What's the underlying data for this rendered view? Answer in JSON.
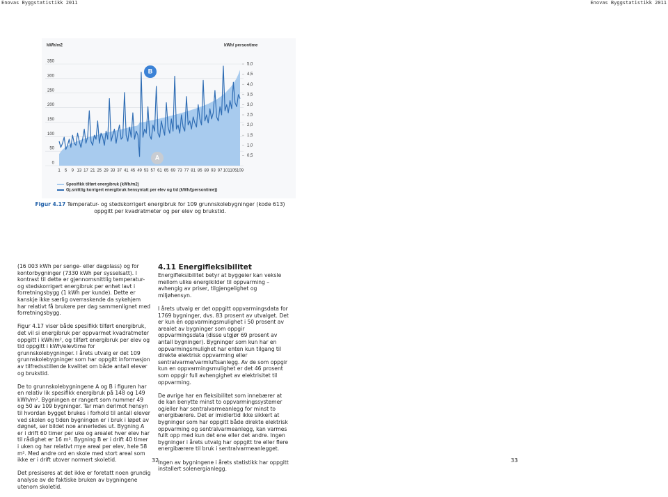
{
  "header": {
    "left": "Enovas Byggstatistikk 2011",
    "right": "Enovas Byggstatistikk 2011"
  },
  "chart_data": {
    "type": "area-line",
    "y_label": "kWh/m2",
    "y2_label": "kWh/ persontime",
    "x": [
      1,
      2,
      3,
      4,
      5,
      6,
      7,
      8,
      9,
      10,
      11,
      12,
      13,
      14,
      15,
      16,
      17,
      18,
      19,
      20,
      21,
      22,
      23,
      24,
      25,
      26,
      27,
      28,
      29,
      30,
      31,
      32,
      33,
      34,
      35,
      36,
      37,
      38,
      39,
      40,
      41,
      42,
      43,
      44,
      45,
      46,
      47,
      48,
      49,
      50,
      51,
      52,
      53,
      54,
      55,
      56,
      57,
      58,
      59,
      60,
      61,
      62,
      63,
      64,
      65,
      66,
      67,
      68,
      69,
      70,
      71,
      72,
      73,
      74,
      75,
      76,
      77,
      78,
      79,
      80,
      81,
      82,
      83,
      84,
      85,
      86,
      87,
      88,
      89,
      90,
      91,
      92,
      93,
      94,
      95,
      96,
      97,
      98,
      99,
      100,
      101,
      102,
      103,
      104,
      105,
      106,
      107,
      108,
      109
    ],
    "xlim": [
      1,
      109
    ],
    "xticks": [
      1,
      5,
      9,
      13,
      17,
      21,
      25,
      29,
      33,
      37,
      41,
      45,
      49,
      53,
      57,
      61,
      65,
      69,
      73,
      77,
      81,
      85,
      89,
      93,
      97,
      101,
      105,
      109
    ],
    "ylim": [
      0,
      350
    ],
    "yticks": [
      0,
      50,
      100,
      150,
      200,
      250,
      300,
      350
    ],
    "y2lim": [
      0,
      5
    ],
    "y2ticks": [
      {
        "value": 0.5,
        "label": "0,5"
      },
      {
        "value": 1,
        "label": "1,0"
      },
      {
        "value": 1.5,
        "label": "1,5"
      },
      {
        "value": 2,
        "label": "2,0"
      },
      {
        "value": 2.5,
        "label": "2,5"
      },
      {
        "value": 3,
        "label": "3,0"
      },
      {
        "value": 3.5,
        "label": "3,5"
      },
      {
        "value": 4,
        "label": "4,0"
      },
      {
        "value": 4.5,
        "label": "4,5"
      },
      {
        "value": 5,
        "label": "5,0"
      }
    ],
    "grid": true,
    "series": [
      {
        "name": "Spesifikk tilført energibruk (kWh/m2)",
        "color": "#a8cbee",
        "values": [
          40,
          48,
          55,
          60,
          65,
          68,
          72,
          75,
          78,
          80,
          82,
          85,
          87,
          89,
          91,
          93,
          95,
          97,
          99,
          100,
          102,
          103,
          105,
          106,
          108,
          109,
          111,
          112,
          113,
          115,
          116,
          117,
          119,
          120,
          121,
          123,
          124,
          125,
          127,
          128,
          129,
          131,
          132,
          133,
          135,
          136,
          137,
          139,
          148,
          149,
          150,
          151,
          152,
          153,
          155,
          156,
          157,
          158,
          160,
          161,
          162,
          164,
          165,
          166,
          168,
          169,
          171,
          172,
          174,
          175,
          177,
          178,
          180,
          182,
          183,
          185,
          187,
          189,
          190,
          192,
          194,
          196,
          198,
          200,
          202,
          204,
          206,
          208,
          211,
          213,
          216,
          219,
          222,
          225,
          228,
          232,
          236,
          240,
          245,
          250,
          256,
          262,
          268,
          275,
          283,
          292,
          302,
          315,
          330
        ]
      },
      {
        "name": "Gj.snittlig korrigert energibruk hensyntatt per elev og tid (kWh/(persontime))",
        "color": "#2f6db4",
        "axis": "y2",
        "values": [
          1.2,
          0.9,
          1.1,
          1.4,
          0.8,
          1.0,
          1.3,
          0.9,
          1.5,
          1.1,
          1.0,
          1.6,
          1.2,
          0.9,
          1.3,
          1.8,
          1.1,
          1.4,
          2.7,
          1.2,
          1.0,
          1.5,
          1.3,
          2.2,
          1.1,
          1.6,
          1.4,
          1.0,
          1.7,
          1.3,
          3.3,
          1.2,
          1.5,
          1.8,
          1.1,
          1.6,
          2.0,
          1.3,
          1.4,
          3.6,
          1.5,
          1.2,
          1.9,
          1.4,
          2.6,
          1.3,
          1.7,
          1.5,
          0.45,
          4.6,
          1.4,
          1.8,
          1.6,
          2.9,
          1.5,
          1.3,
          2.0,
          1.7,
          3.9,
          1.6,
          1.4,
          2.2,
          1.8,
          1.5,
          3.1,
          1.9,
          1.6,
          2.3,
          1.7,
          4.4,
          1.8,
          2.0,
          1.6,
          2.5,
          1.9,
          1.7,
          3.4,
          2.0,
          2.2,
          1.8,
          2.4,
          2.1,
          1.9,
          3.0,
          2.3,
          2.0,
          4.2,
          2.2,
          2.5,
          2.1,
          2.8,
          2.3,
          2.6,
          3.7,
          2.4,
          2.2,
          2.9,
          2.5,
          4.9,
          2.7,
          3.0,
          2.6,
          3.2,
          2.8,
          4.1,
          3.1,
          2.9,
          3.5,
          3.3
        ]
      }
    ],
    "annotations": [
      "A",
      "B"
    ]
  },
  "caption": {
    "label": "Figur 4.17",
    "text": "Temperatur- og stedskorrigert energibruk for 109 grunnskolebygninger (kode 613) oppgitt per kvadratmeter og per elev og brukstid."
  },
  "left_column": [
    "(16 003 kWh per senge- eller dagplass) og for kontorbygninger (7330 kWh per sysselsatt). I kontrast til dette er gjennomsnittlig temperatur- og stedskorrigert energibruk per enhet lavt i forretningsbygg (1 kWh per kunde). Dette er kanskje ikke særlig overraskende da sykehjem har relativt få brukere per dag sammenlignet med forretningsbygg.",
    "Figur 4.17 viser både spesifikk tilført energibruk, det vil si energibruk per oppvarmet kvadratmeter oppgitt i kWh/m², og tilført energibruk per elev og tid oppgitt i kWh/elevtime for grunnskolebygninger. I årets utvalg er det 109 grunnskolebygninger som har oppgitt informasjon av tilfredsstillende kvalitet om både antall elever og brukstid.",
    "De to grunnskolebygningene A og B i figuren har en relativ lik spesifikk energibruk på 148 og 149 kWh/m². Bygningen er rangert som nummer 49 og 50 av 109 bygninger. Tar man derimot hensyn til hvordan bygget brukes i forhold til antall elever ved skolen og tiden bygningen er i bruk i løpet av døgnet, ser bildet noe annerledes ut. Bygning A er i drift 60 timer per uke og arealet hver elev har til rådighet er 16 m². Bygning B er i drift 40 timer i uken og har relativt mye areal per elev, hele 58 m². Med andre ord en skole med stort areal som ikke er i drift utover normert skoletid.",
    "Det presiseres at det ikke er foretatt noen grundig analyse av de faktiske bruken av bygningene utenom skoletid."
  ],
  "right_column": {
    "heading": "4.11 Energifleksibilitet",
    "paragraphs": [
      "Energifleksibilitet betyr at byggeier kan veksle mellom ulike energikilder til oppvarming – avhengig av priser, tilgjengelighet og miljøhensyn.",
      "I årets utvalg er det oppgitt oppvarmingsdata for 1769 bygninger, dvs. 83 prosent av utvalget. Det er kun én oppvarmingsmulighet i 50 prosent av arealet av bygninger som oppgir oppvarmingsdata (disse utgjør 69 prosent av antall bygninger). Bygninger som kun har en oppvarmingsmulighet har enten kun tilgang til direkte elektrisk oppvarming eller sentralvarme/varmluftsanlegg. Av de som oppgir kun en oppvarmingsmulighet er det 46 prosent som oppgir full avhengighet av elektrisitet til oppvarming.",
      "De øvrige har en fleksibilitet som innebærer at de kan benytte minst to oppvarmingssystemer og/eller har sentralvarmeanlegg for minst to energibærere. Det er imidlertid ikke sikkert at bygninger som har oppgitt både direkte elektrisk oppvarming og sentralvarmeanlegg, kan varmes fullt opp med kun det ene eller det andre. Ingen bygninger i årets utvalg har oppgitt tre eller flere energibærere til bruk i sentralvarmeanlegget.",
      "Ingen av bygningene i årets statistikk har oppgitt installert solenergianlegg."
    ]
  },
  "page_numbers": [
    "32",
    "33"
  ]
}
